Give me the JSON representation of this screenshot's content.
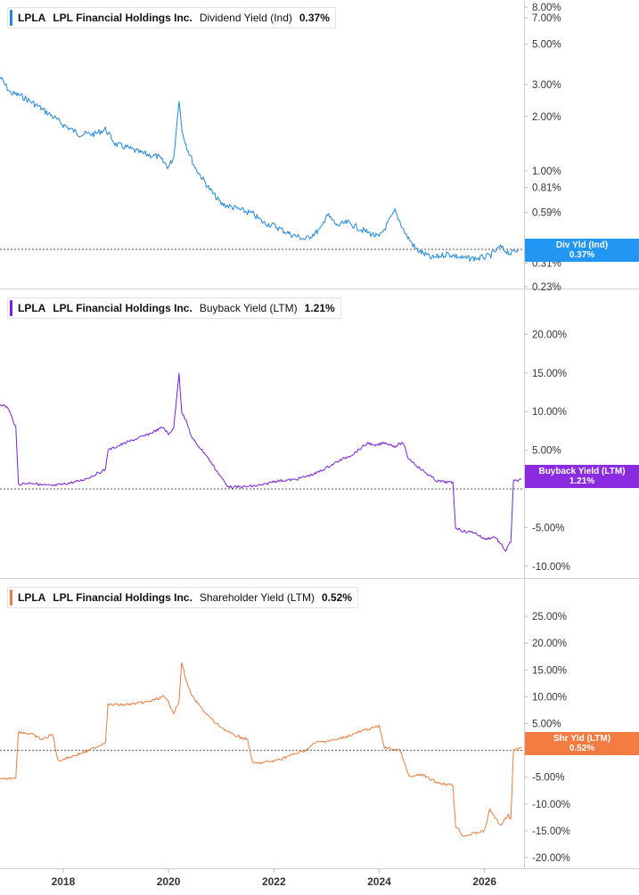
{
  "panels": [
    {
      "ticker": "LPLA",
      "company": "LPL Financial Holdings Inc.",
      "metric": "Dividend Yield (Ind)",
      "value": "0.37%",
      "color": "#1e88e5",
      "tag_label": "Div Yld (Ind)",
      "tag_value": "0.37%",
      "tag_color": "#2196f3"
    },
    {
      "ticker": "LPLA",
      "company": "LPL Financial Holdings Inc.",
      "metric": "Buyback Yield (LTM)",
      "value": "1.21%",
      "color": "#7b1fe0",
      "tag_label": "Buyback Yield (LTM)",
      "tag_value": "1.21%",
      "tag_color": "#8a2be2"
    },
    {
      "ticker": "LPLA",
      "company": "LPL Financial Holdings Inc.",
      "metric": "Shareholder Yield (LTM)",
      "value": "0.52%",
      "color": "#f07c3e",
      "tag_label": "Shr Yld (LTM)",
      "tag_value": "0.52%",
      "tag_color": "#f47b42"
    }
  ],
  "x_axis_labels": [
    "2018",
    "2020",
    "2022",
    "2024",
    "2026"
  ],
  "chart_data": [
    {
      "type": "line",
      "title": "LPLA LPL Financial Holdings Inc. Dividend Yield (Ind) 0.37%",
      "y_scale": "log",
      "y_ticks": [
        "8.00%",
        "7.00%",
        "5.00%",
        "3.00%",
        "2.00%",
        "1.00%",
        "0.81%",
        "0.59%",
        "0.31%",
        "0.23%"
      ],
      "y_tick_values": [
        8,
        7,
        5,
        3,
        2,
        1,
        0.81,
        0.59,
        0.31,
        0.23
      ],
      "ylim": [
        0.23,
        8.2
      ],
      "xlim": [
        2016.8,
        2026.75
      ],
      "x": [
        2016.8,
        2017.0,
        2017.2,
        2017.5,
        2017.8,
        2018.0,
        2018.3,
        2018.6,
        2018.8,
        2019.0,
        2019.2,
        2019.5,
        2019.8,
        2020.0,
        2020.1,
        2020.2,
        2020.25,
        2020.35,
        2020.5,
        2020.8,
        2021.0,
        2021.3,
        2021.6,
        2021.8,
        2022.0,
        2022.3,
        2022.6,
        2022.9,
        2023.0,
        2023.2,
        2023.4,
        2023.7,
        2024.0,
        2024.3,
        2024.5,
        2024.7,
        2025.0,
        2025.3,
        2025.6,
        2025.9,
        2026.1,
        2026.3,
        2026.5,
        2026.65
      ],
      "y": [
        3.3,
        2.7,
        2.6,
        2.3,
        2.0,
        1.8,
        1.6,
        1.6,
        1.7,
        1.4,
        1.35,
        1.25,
        1.2,
        1.05,
        1.2,
        2.5,
        1.7,
        1.35,
        1.05,
        0.78,
        0.66,
        0.62,
        0.58,
        0.52,
        0.5,
        0.45,
        0.42,
        0.48,
        0.58,
        0.5,
        0.52,
        0.47,
        0.43,
        0.6,
        0.45,
        0.37,
        0.33,
        0.35,
        0.33,
        0.33,
        0.34,
        0.38,
        0.35,
        0.37
      ],
      "dotted_line_at": 0.37
    },
    {
      "type": "line",
      "title": "LPLA LPL Financial Holdings Inc. Buyback Yield (LTM) 1.21%",
      "y_ticks": [
        "20.00%",
        "15.00%",
        "10.00%",
        "5.00%",
        "-5.00%",
        "-10.00%"
      ],
      "y_tick_values": [
        20,
        15,
        10,
        5,
        -5,
        -10
      ],
      "ylim": [
        -10.6,
        22
      ],
      "xlim": [
        2016.8,
        2026.75
      ],
      "x": [
        2016.8,
        2016.95,
        2017.1,
        2017.15,
        2017.4,
        2017.6,
        2017.8,
        2018.0,
        2018.3,
        2018.5,
        2018.8,
        2018.85,
        2019.2,
        2019.6,
        2019.9,
        2020.0,
        2020.1,
        2020.2,
        2020.25,
        2020.35,
        2020.45,
        2020.7,
        2020.9,
        2021.1,
        2021.2,
        2021.5,
        2021.8,
        2022.0,
        2022.4,
        2022.8,
        2023.2,
        2023.5,
        2023.8,
        2023.9,
        2024.1,
        2024.3,
        2024.45,
        2024.55,
        2024.8,
        2025.1,
        2025.4,
        2025.45,
        2025.6,
        2025.8,
        2026.0,
        2026.2,
        2026.4,
        2026.5,
        2026.55,
        2026.7
      ],
      "y": [
        11.0,
        10.5,
        8.0,
        0.6,
        0.8,
        0.5,
        0.4,
        0.6,
        1.0,
        1.5,
        2.5,
        5.0,
        6.0,
        7.0,
        8.0,
        7.0,
        8.0,
        15.0,
        10.0,
        8.5,
        6.5,
        4.5,
        2.5,
        0.5,
        0.2,
        0.3,
        0.5,
        1.0,
        1.2,
        2.0,
        3.5,
        4.5,
        6.0,
        5.5,
        6.0,
        5.5,
        6.0,
        4.0,
        2.5,
        1.0,
        0.8,
        -5.0,
        -5.5,
        -5.6,
        -6.5,
        -6.2,
        -8.0,
        -6.8,
        1.0,
        1.21
      ],
      "dotted_line_at": 0
    },
    {
      "type": "line",
      "title": "LPLA LPL Financial Holdings Inc. Shareholder Yield (LTM) 0.52%",
      "y_ticks": [
        "25.00%",
        "20.00%",
        "15.00%",
        "10.00%",
        "5.00%",
        "-5.00%",
        "-10.00%",
        "-15.00%",
        "-20.00%"
      ],
      "y_tick_values": [
        25,
        20,
        15,
        10,
        5,
        -5,
        -10,
        -15,
        -20
      ],
      "ylim": [
        -21,
        28
      ],
      "xlim": [
        2016.8,
        2026.75
      ],
      "x": [
        2016.8,
        2017.1,
        2017.15,
        2017.4,
        2017.6,
        2017.8,
        2017.9,
        2018.2,
        2018.5,
        2018.8,
        2018.85,
        2019.2,
        2019.6,
        2019.9,
        2020.0,
        2020.1,
        2020.2,
        2020.25,
        2020.35,
        2020.45,
        2020.7,
        2020.9,
        2021.2,
        2021.5,
        2021.6,
        2022.0,
        2022.3,
        2022.6,
        2022.8,
        2023.2,
        2023.5,
        2023.8,
        2024.0,
        2024.1,
        2024.4,
        2024.55,
        2024.6,
        2024.8,
        2025.1,
        2025.4,
        2025.45,
        2025.6,
        2025.8,
        2026.0,
        2026.1,
        2026.3,
        2026.45,
        2026.5,
        2026.55,
        2026.7
      ],
      "y": [
        -5.5,
        -5.0,
        3.5,
        3.0,
        2.0,
        3.0,
        -2.0,
        -1.0,
        0.0,
        1.5,
        8.5,
        8.5,
        9.0,
        10.0,
        9.0,
        7.0,
        9.0,
        16.5,
        12.5,
        10.0,
        7.0,
        5.0,
        3.0,
        2.0,
        -2.5,
        -2.0,
        -1.0,
        0.0,
        1.5,
        2.0,
        3.0,
        4.0,
        4.5,
        0.5,
        0.0,
        -4.5,
        -5.0,
        -4.5,
        -6.0,
        -6.5,
        -14.0,
        -16.0,
        -15.5,
        -15.0,
        -11.0,
        -14.0,
        -12.0,
        -13.0,
        0.0,
        0.52
      ],
      "dotted_line_at": 0
    }
  ]
}
